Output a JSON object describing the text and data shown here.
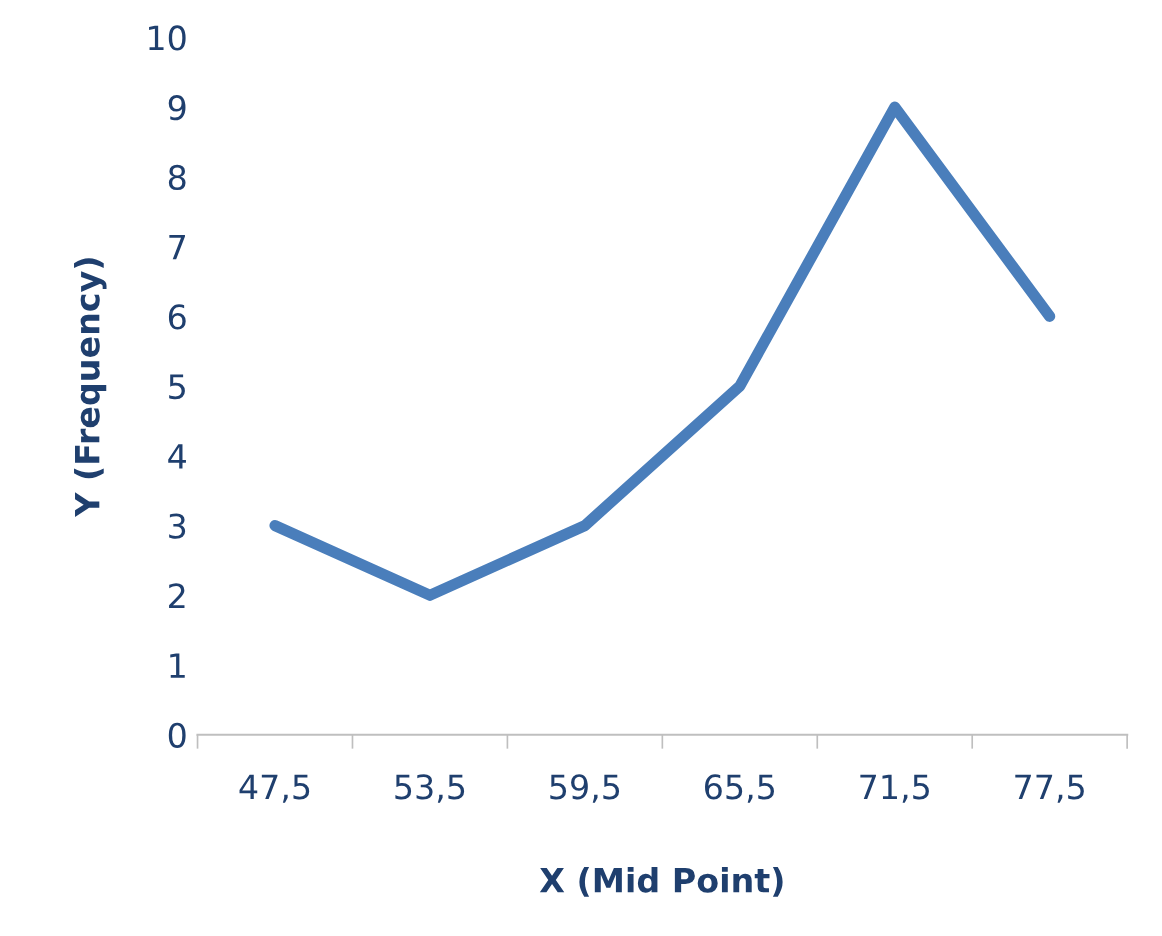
{
  "chart_data": {
    "type": "line",
    "xlabel": "X (Mid Point)",
    "ylabel": "Y (Frequency)",
    "categories": [
      "47,5",
      "53,5",
      "59,5",
      "65,5",
      "71,5",
      "77,5"
    ],
    "series": [
      {
        "color": "#4a7ebb",
        "values": [
          3,
          2,
          3,
          5,
          9,
          6
        ]
      }
    ],
    "ylim": [
      0,
      10
    ],
    "yticks": [
      0,
      1,
      2,
      3,
      4,
      5,
      6,
      7,
      8,
      9,
      10
    ],
    "grid": false,
    "legend": false,
    "marker": "none",
    "line_style": "solid"
  }
}
